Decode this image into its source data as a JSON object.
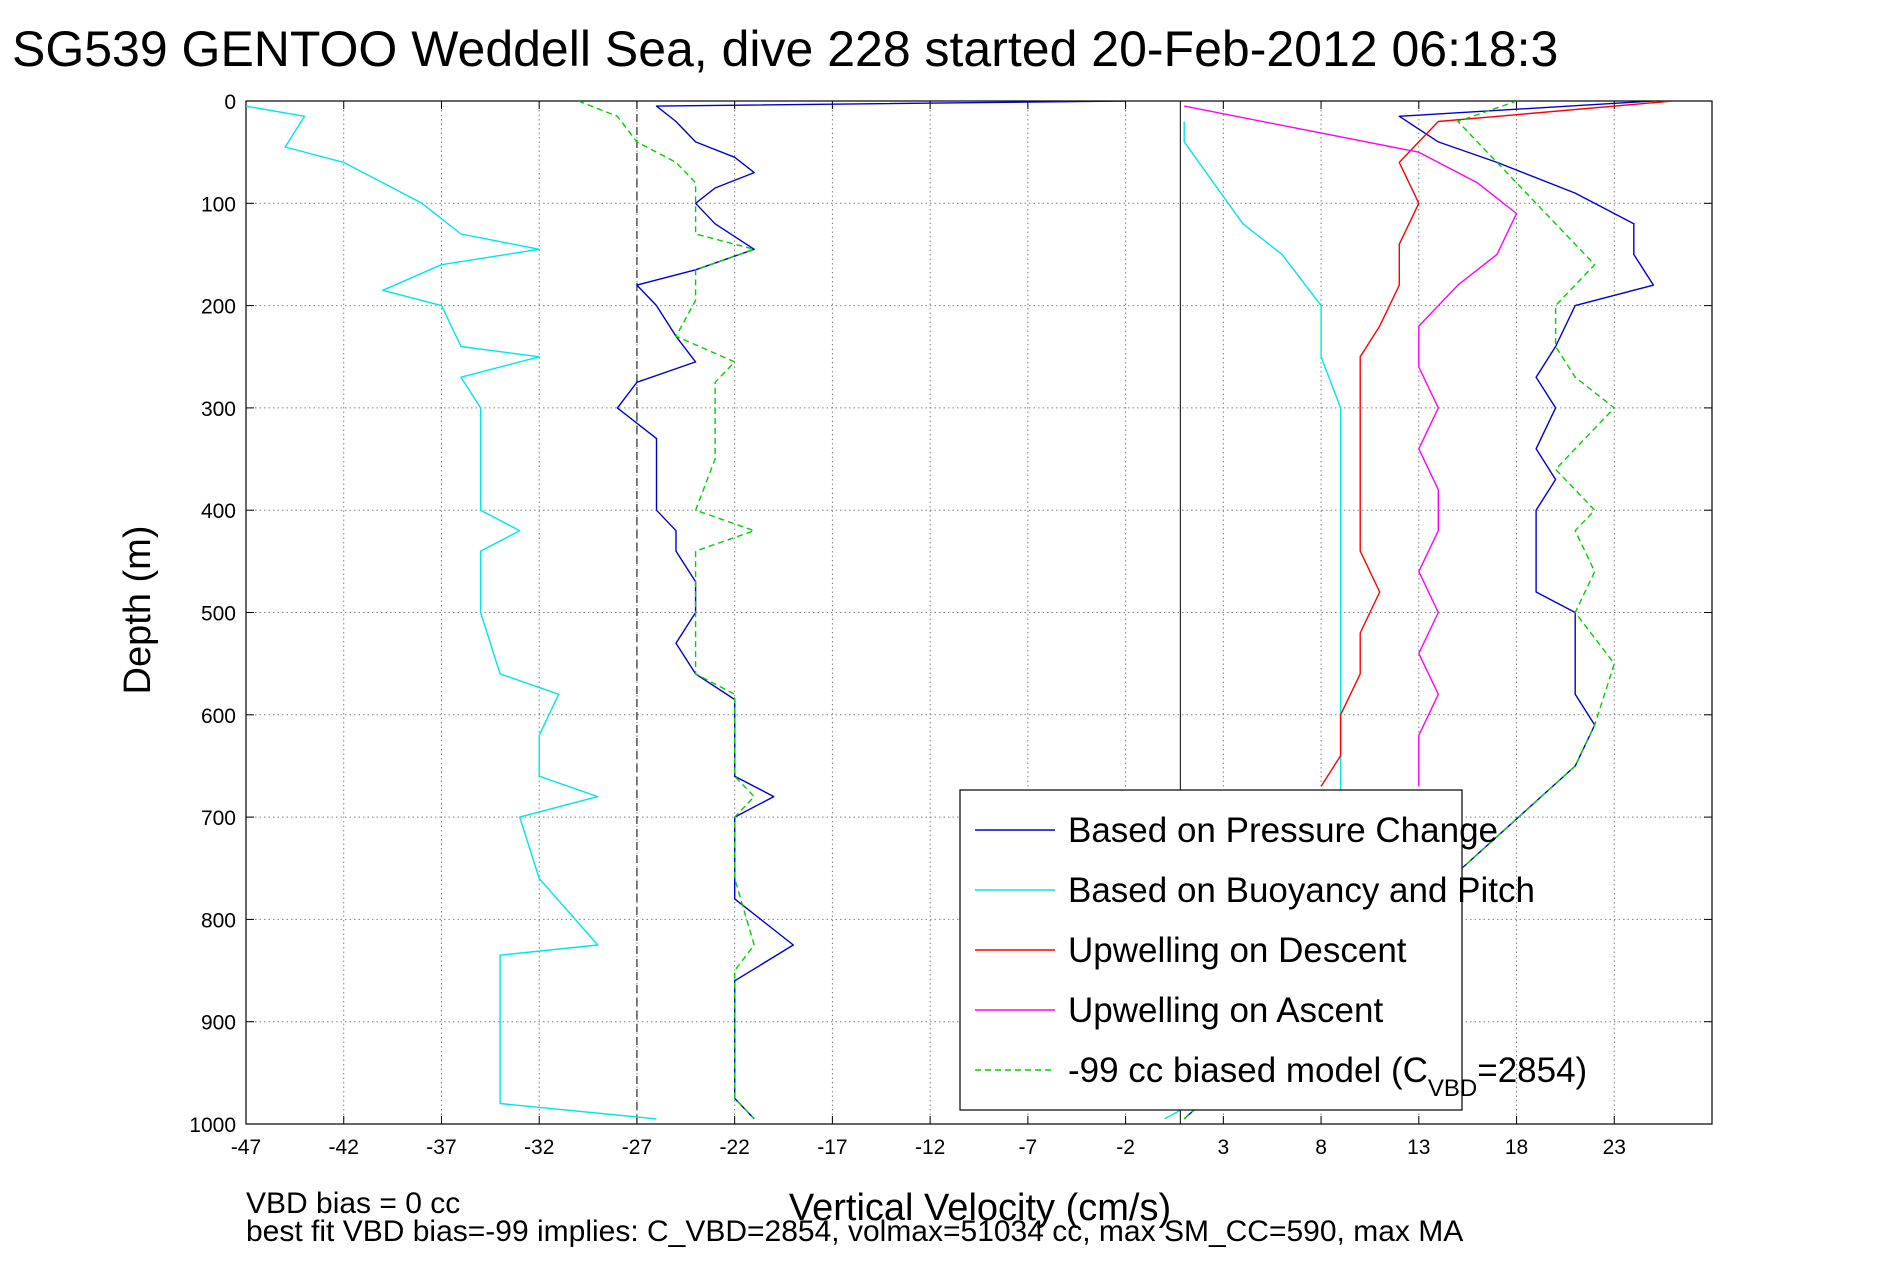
{
  "chart_data": {
    "type": "line",
    "title": "SG539 GENTOO Weddell Sea, dive 228 started 20-Feb-2012 06:18:3",
    "xlabel": "Vertical Velocity (cm/s)",
    "ylabel": "Depth (m)",
    "xlim": [
      -47,
      28
    ],
    "ylim": [
      1000,
      0
    ],
    "x_ticks": [
      "-47",
      "-42",
      "-37",
      "-32",
      "-27",
      "-22",
      "-17",
      "-12",
      "-7",
      "-2",
      "3",
      "8",
      "13",
      "18",
      "23"
    ],
    "y_ticks": [
      "0",
      "100",
      "200",
      "300",
      "400",
      "500",
      "600",
      "700",
      "800",
      "900",
      "1000"
    ],
    "grid": true,
    "reference_lines": {
      "dashed_x": -27,
      "solid_x": 0.8
    },
    "notes": [
      "VBD bias = 0 cc",
      "best fit VBD bias=-99 implies: C_VBD=2854, volmax=51034 cc, max SM_CC=590, max MA"
    ],
    "legend": {
      "placement": "bottom-right",
      "entries": [
        {
          "label": "Based on Pressure Change",
          "color": "#0000d0",
          "dash": false
        },
        {
          "label": "Based on Buoyancy and Pitch",
          "color": "#00e5e5",
          "dash": false
        },
        {
          "label": "Upwelling on Descent",
          "color": "#ff0000",
          "dash": false
        },
        {
          "label": "Upwelling on Ascent",
          "color": "#ff00ff",
          "dash": false
        },
        {
          "label_main": "-99 cc biased model (C",
          "label_sub": "VBD",
          "label_tail": "=2854)",
          "color": "#00d000",
          "dash": true
        }
      ]
    },
    "series": [
      {
        "name": "Based on Pressure Change (descent)",
        "color": "#0000d0",
        "points": [
          [
            -2,
            0
          ],
          [
            -26,
            5
          ],
          [
            -25,
            20
          ],
          [
            -24,
            40
          ],
          [
            -22,
            55
          ],
          [
            -21,
            70
          ],
          [
            -23,
            85
          ],
          [
            -24,
            100
          ],
          [
            -23,
            120
          ],
          [
            -21,
            145
          ],
          [
            -24,
            165
          ],
          [
            -27,
            180
          ],
          [
            -26,
            200
          ],
          [
            -25,
            230
          ],
          [
            -24,
            255
          ],
          [
            -27,
            275
          ],
          [
            -28,
            300
          ],
          [
            -26,
            330
          ],
          [
            -26,
            360
          ],
          [
            -26,
            400
          ],
          [
            -25,
            420
          ],
          [
            -25,
            440
          ],
          [
            -24,
            470
          ],
          [
            -24,
            500
          ],
          [
            -25,
            530
          ],
          [
            -24,
            560
          ],
          [
            -22,
            585
          ],
          [
            -22,
            620
          ],
          [
            -22,
            660
          ],
          [
            -20,
            680
          ],
          [
            -22,
            700
          ],
          [
            -22,
            740
          ],
          [
            -22,
            780
          ],
          [
            -19,
            825
          ],
          [
            -22,
            860
          ],
          [
            -22,
            900
          ],
          [
            -22,
            940
          ],
          [
            -22,
            975
          ],
          [
            -21,
            995
          ]
        ]
      },
      {
        "name": "Based on Pressure Change (ascent)",
        "color": "#0000d0",
        "points": [
          [
            1,
            995
          ],
          [
            21,
            650
          ],
          [
            22,
            610
          ],
          [
            21,
            580
          ],
          [
            21,
            540
          ],
          [
            21,
            500
          ],
          [
            19,
            480
          ],
          [
            19,
            440
          ],
          [
            19,
            400
          ],
          [
            20,
            370
          ],
          [
            19,
            340
          ],
          [
            20,
            300
          ],
          [
            19,
            270
          ],
          [
            20,
            240
          ],
          [
            21,
            200
          ],
          [
            25,
            180
          ],
          [
            24,
            150
          ],
          [
            24,
            120
          ],
          [
            21,
            90
          ],
          [
            17,
            60
          ],
          [
            14,
            40
          ],
          [
            12,
            15
          ],
          [
            25,
            0
          ]
        ]
      },
      {
        "name": "Based on Buoyancy and Pitch (descent)",
        "color": "#00e5e5",
        "points": [
          [
            -47,
            5
          ],
          [
            -44,
            15
          ],
          [
            -45,
            45
          ],
          [
            -42,
            60
          ],
          [
            -40,
            80
          ],
          [
            -38,
            100
          ],
          [
            -36,
            130
          ],
          [
            -32,
            145
          ],
          [
            -37,
            160
          ],
          [
            -40,
            185
          ],
          [
            -37,
            200
          ],
          [
            -36,
            240
          ],
          [
            -32,
            250
          ],
          [
            -36,
            270
          ],
          [
            -35,
            300
          ],
          [
            -35,
            350
          ],
          [
            -35,
            400
          ],
          [
            -33,
            420
          ],
          [
            -35,
            440
          ],
          [
            -35,
            500
          ],
          [
            -34,
            560
          ],
          [
            -31,
            580
          ],
          [
            -32,
            620
          ],
          [
            -32,
            660
          ],
          [
            -29,
            680
          ],
          [
            -33,
            700
          ],
          [
            -32,
            760
          ],
          [
            -29,
            825
          ],
          [
            -34,
            835
          ],
          [
            -34,
            900
          ],
          [
            -34,
            980
          ],
          [
            -26,
            995
          ]
        ]
      },
      {
        "name": "Based on Buoyancy and Pitch (ascent)",
        "color": "#00e5e5",
        "points": [
          [
            0,
            995
          ],
          [
            9,
            900
          ],
          [
            9,
            800
          ],
          [
            9,
            700
          ],
          [
            9,
            600
          ],
          [
            9,
            550
          ],
          [
            9,
            500
          ],
          [
            9,
            450
          ],
          [
            9,
            400
          ],
          [
            9,
            350
          ],
          [
            9,
            300
          ],
          [
            8,
            250
          ],
          [
            8,
            200
          ],
          [
            6,
            150
          ],
          [
            4,
            120
          ],
          [
            1,
            40
          ],
          [
            1,
            20
          ]
        ]
      },
      {
        "name": "Upwelling on Descent",
        "color": "#ff0000",
        "points": [
          [
            8,
            670
          ],
          [
            9,
            640
          ],
          [
            9,
            600
          ],
          [
            10,
            560
          ],
          [
            10,
            520
          ],
          [
            11,
            480
          ],
          [
            10,
            440
          ],
          [
            10,
            400
          ],
          [
            10,
            360
          ],
          [
            10,
            320
          ],
          [
            10,
            280
          ],
          [
            10,
            250
          ],
          [
            11,
            220
          ],
          [
            12,
            180
          ],
          [
            12,
            140
          ],
          [
            13,
            100
          ],
          [
            12,
            60
          ],
          [
            13,
            40
          ],
          [
            14,
            20
          ],
          [
            26,
            0
          ]
        ]
      },
      {
        "name": "Upwelling on Ascent",
        "color": "#ff00ff",
        "points": [
          [
            13,
            670
          ],
          [
            13,
            620
          ],
          [
            14,
            580
          ],
          [
            13,
            540
          ],
          [
            14,
            500
          ],
          [
            13,
            460
          ],
          [
            14,
            420
          ],
          [
            14,
            380
          ],
          [
            13,
            340
          ],
          [
            14,
            300
          ],
          [
            13,
            260
          ],
          [
            13,
            220
          ],
          [
            15,
            180
          ],
          [
            17,
            150
          ],
          [
            18,
            110
          ],
          [
            16,
            80
          ],
          [
            13,
            50
          ],
          [
            1,
            5
          ]
        ]
      },
      {
        "name": "-99 cc biased model (descent)",
        "color": "#00d000",
        "points": [
          [
            -30,
            0
          ],
          [
            -28,
            15
          ],
          [
            -27,
            40
          ],
          [
            -25,
            60
          ],
          [
            -24,
            80
          ],
          [
            -24,
            100
          ],
          [
            -24,
            130
          ],
          [
            -21,
            145
          ],
          [
            -24,
            165
          ],
          [
            -24,
            195
          ],
          [
            -25,
            230
          ],
          [
            -22,
            255
          ],
          [
            -23,
            275
          ],
          [
            -23,
            300
          ],
          [
            -23,
            350
          ],
          [
            -24,
            400
          ],
          [
            -21,
            420
          ],
          [
            -24,
            440
          ],
          [
            -24,
            500
          ],
          [
            -24,
            560
          ],
          [
            -22,
            580
          ],
          [
            -22,
            620
          ],
          [
            -22,
            660
          ],
          [
            -21,
            680
          ],
          [
            -22,
            700
          ],
          [
            -22,
            760
          ],
          [
            -21,
            825
          ],
          [
            -22,
            850
          ],
          [
            -22,
            900
          ],
          [
            -22,
            975
          ],
          [
            -21,
            995
          ]
        ]
      },
      {
        "name": "-99 cc biased model (ascent)",
        "color": "#00d000",
        "points": [
          [
            1,
            995
          ],
          [
            21,
            650
          ],
          [
            22,
            610
          ],
          [
            23,
            550
          ],
          [
            21,
            500
          ],
          [
            22,
            460
          ],
          [
            21,
            420
          ],
          [
            22,
            400
          ],
          [
            20,
            360
          ],
          [
            23,
            300
          ],
          [
            21,
            270
          ],
          [
            20,
            240
          ],
          [
            20,
            200
          ],
          [
            22,
            160
          ],
          [
            19,
            100
          ],
          [
            17,
            60
          ],
          [
            15,
            20
          ],
          [
            18,
            0
          ]
        ]
      }
    ]
  }
}
